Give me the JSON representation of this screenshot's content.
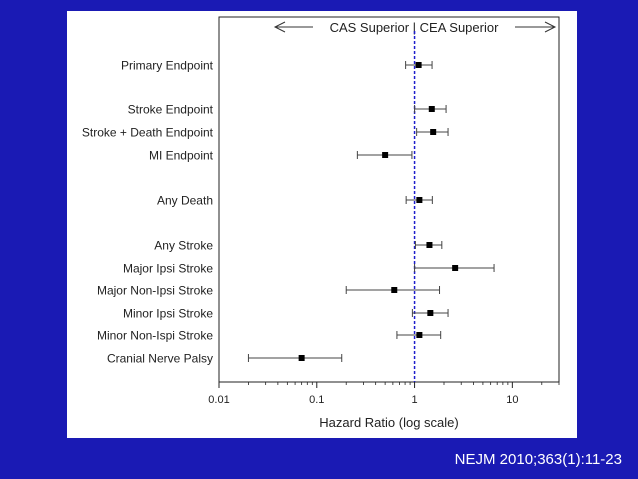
{
  "chart_data": {
    "type": "forest",
    "header": "CAS Superior | CEA Superior",
    "xlabel": "Hazard Ratio (log scale)",
    "x_scale": "log",
    "xlim": [
      0.01,
      30
    ],
    "xticks": [
      0.01,
      0.1,
      1,
      10
    ],
    "xtick_labels": [
      "0.01",
      "0.1",
      "1",
      "10"
    ],
    "reference_line": 1,
    "rows": [
      {
        "label": "Primary Endpoint",
        "hr": 1.1,
        "lo": 0.81,
        "hi": 1.51
      },
      {
        "label": "Stroke Endpoint",
        "hr": 1.5,
        "lo": 1.0,
        "hi": 2.1
      },
      {
        "label": "Stroke + Death Endpoint",
        "hr": 1.55,
        "lo": 1.05,
        "hi": 2.2
      },
      {
        "label": "MI Endpoint",
        "hr": 0.5,
        "lo": 0.26,
        "hi": 0.94
      },
      {
        "label": "Any Death",
        "hr": 1.12,
        "lo": 0.82,
        "hi": 1.52
      },
      {
        "label": "Any Stroke",
        "hr": 1.42,
        "lo": 1.02,
        "hi": 1.9
      },
      {
        "label": "Major Ipsi Stroke",
        "hr": 2.6,
        "lo": 1.0,
        "hi": 6.5
      },
      {
        "label": "Major Non-Ipsi Stroke",
        "hr": 0.62,
        "lo": 0.2,
        "hi": 1.8
      },
      {
        "label": "Minor Ipsi Stroke",
        "hr": 1.45,
        "lo": 0.95,
        "hi": 2.2
      },
      {
        "label": "Minor Non-Ispi Stroke",
        "hr": 1.12,
        "lo": 0.66,
        "hi": 1.85
      },
      {
        "label": "Cranial Nerve Palsy",
        "hr": 0.07,
        "lo": 0.02,
        "hi": 0.18
      }
    ]
  },
  "citation": "NEJM 2010;363(1):11-23",
  "colors": {
    "background": "#1a1ab4",
    "panel": "#ffffff",
    "reference_line": "#1d1dcc",
    "marker": "#000000"
  }
}
